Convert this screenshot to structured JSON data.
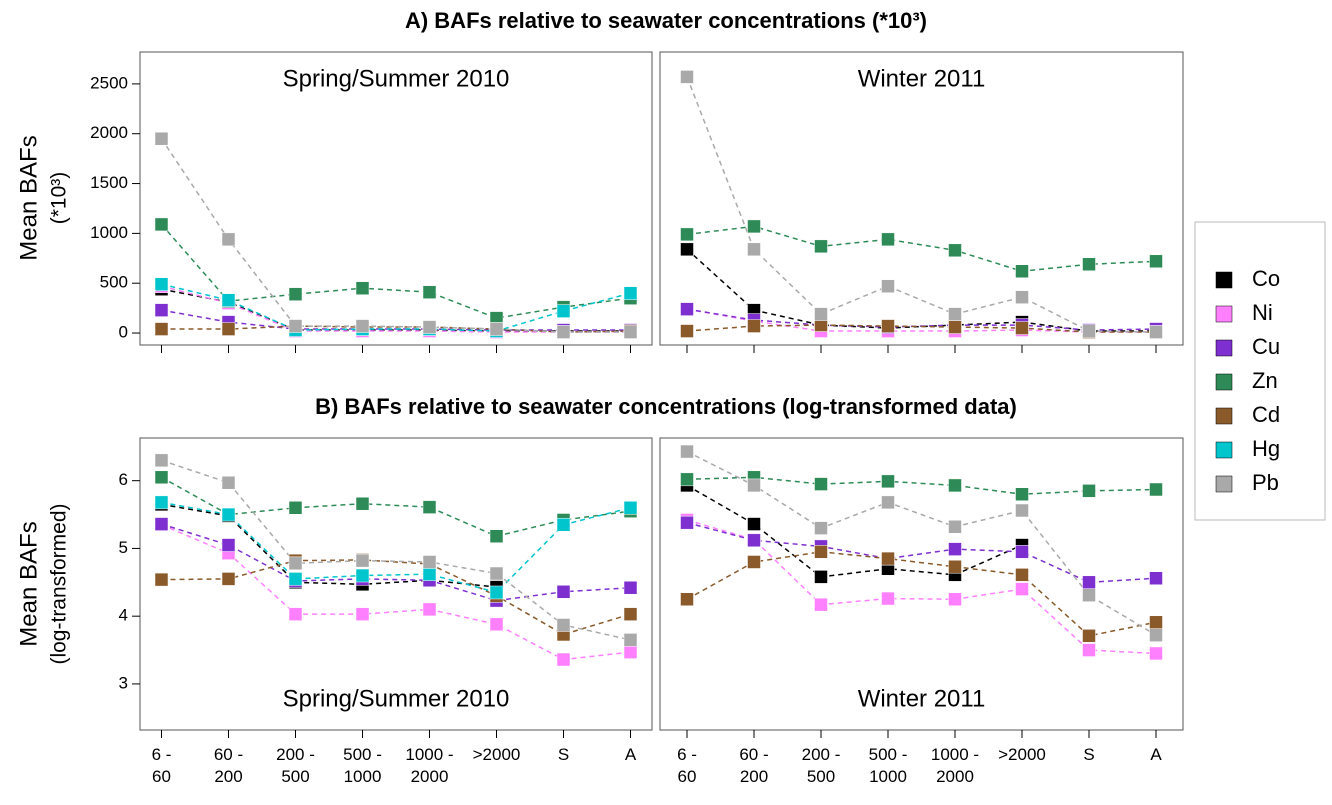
{
  "series": [
    {
      "name": "Co",
      "color": "#000000"
    },
    {
      "name": "Ni",
      "color": "#ff80ff"
    },
    {
      "name": "Cu",
      "color": "#7e2fd0"
    },
    {
      "name": "Zn",
      "color": "#2e8b57"
    },
    {
      "name": "Cd",
      "color": "#8b5a2b"
    },
    {
      "name": "Hg",
      "color": "#00c5cd"
    },
    {
      "name": "Pb",
      "color": "#a9a9a9"
    }
  ],
  "chart_data": [
    {
      "type": "line",
      "title": "A) BAFs relative to seawater concentrations (*10³)",
      "ylabel": [
        "Mean BAFs",
        "(*10³)"
      ],
      "label": "Spring/Summer 2010",
      "categories": [
        null,
        null,
        null,
        null,
        null,
        null,
        null,
        null
      ],
      "ylim": [
        -120,
        2820
      ],
      "yticks": [
        0,
        500,
        1000,
        1500,
        2000,
        2500
      ],
      "series": [
        {
          "values": [
            440,
            310,
            30,
            30,
            30,
            20,
            20,
            20
          ]
        },
        {
          "values": [
            470,
            300,
            20,
            20,
            20,
            10,
            10,
            10
          ]
        },
        {
          "values": [
            230,
            110,
            40,
            40,
            40,
            30,
            30,
            30
          ]
        },
        {
          "values": [
            1090,
            320,
            390,
            450,
            410,
            150,
            260,
            350
          ]
        },
        {
          "values": [
            40,
            40,
            70,
            60,
            60,
            40,
            10,
            20
          ]
        },
        {
          "values": [
            490,
            330,
            30,
            40,
            40,
            20,
            220,
            400
          ]
        },
        {
          "values": [
            1950,
            940,
            70,
            70,
            60,
            40,
            10,
            10
          ]
        }
      ]
    },
    {
      "type": "line",
      "label": "Winter 2011",
      "categories": [
        null,
        null,
        null,
        null,
        null,
        null,
        null,
        null
      ],
      "ylim": [
        -120,
        2820
      ],
      "series": [
        {
          "values": [
            840,
            230,
            80,
            50,
            80,
            110,
            20,
            20
          ]
        },
        {
          "values": [
            240,
            120,
            20,
            20,
            20,
            30,
            10,
            10
          ]
        },
        {
          "values": [
            240,
            130,
            80,
            60,
            80,
            80,
            30,
            40
          ]
        },
        {
          "values": [
            990,
            1070,
            870,
            940,
            830,
            620,
            690,
            720
          ]
        },
        {
          "values": [
            20,
            70,
            80,
            70,
            60,
            50,
            10,
            10
          ]
        },
        {
          "values": [
            null,
            null,
            null,
            null,
            null,
            null,
            null,
            null
          ]
        },
        {
          "values": [
            2570,
            840,
            190,
            470,
            190,
            360,
            20,
            10
          ]
        }
      ]
    },
    {
      "type": "line",
      "title": "B) BAFs relative to seawater concentrations (log-transformed data)",
      "ylabel": [
        "Mean BAFs",
        "(log-transformed)"
      ],
      "label": "Spring/Summer 2010",
      "categories": [
        "6 -\n60",
        "60 -\n200",
        "200 -\n500",
        "500 -\n1000",
        "1000 -\n2000",
        ">2000",
        "S",
        "A"
      ],
      "ylim": [
        2.32,
        6.63
      ],
      "yticks": [
        3,
        4,
        5,
        6
      ],
      "series": [
        {
          "values": [
            5.65,
            5.48,
            4.5,
            4.47,
            4.53,
            4.43,
            null,
            null
          ]
        },
        {
          "values": [
            5.35,
            4.93,
            4.03,
            4.03,
            4.1,
            3.88,
            3.36,
            3.47
          ]
        },
        {
          "values": [
            5.36,
            5.05,
            4.52,
            4.55,
            4.53,
            4.23,
            4.36,
            4.42
          ]
        },
        {
          "values": [
            6.05,
            5.5,
            5.6,
            5.66,
            5.61,
            5.18,
            5.42,
            5.55
          ]
        },
        {
          "values": [
            4.54,
            4.55,
            4.82,
            4.83,
            4.77,
            4.3,
            3.73,
            4.03
          ]
        },
        {
          "values": [
            5.68,
            5.5,
            4.55,
            4.6,
            4.62,
            4.35,
            5.35,
            5.6
          ]
        },
        {
          "values": [
            6.3,
            5.97,
            4.78,
            4.82,
            4.8,
            4.63,
            3.87,
            3.65
          ]
        }
      ]
    },
    {
      "type": "line",
      "label": "Winter 2011",
      "categories": [
        "6 -\n60",
        "60 -\n200",
        "200 -\n500",
        "500 -\n1000",
        "1000 -\n2000",
        ">2000",
        "S",
        "A"
      ],
      "ylim": [
        2.32,
        6.63
      ],
      "series": [
        {
          "values": [
            5.93,
            5.36,
            4.58,
            4.7,
            4.61,
            5.05,
            null,
            null
          ]
        },
        {
          "values": [
            5.42,
            5.13,
            4.17,
            4.26,
            4.25,
            4.4,
            3.5,
            3.45
          ]
        },
        {
          "values": [
            5.38,
            5.12,
            5.03,
            4.85,
            4.99,
            4.95,
            4.5,
            4.56
          ]
        },
        {
          "values": [
            6.02,
            6.05,
            5.95,
            5.99,
            5.93,
            5.8,
            5.85,
            5.87
          ]
        },
        {
          "values": [
            4.25,
            4.8,
            4.95,
            4.85,
            4.73,
            4.61,
            3.71,
            3.91
          ]
        },
        {
          "values": [
            null,
            null,
            null,
            null,
            null,
            null,
            null,
            null
          ]
        },
        {
          "values": [
            6.43,
            5.93,
            5.3,
            5.68,
            5.32,
            5.56,
            4.31,
            3.72
          ]
        }
      ]
    }
  ]
}
